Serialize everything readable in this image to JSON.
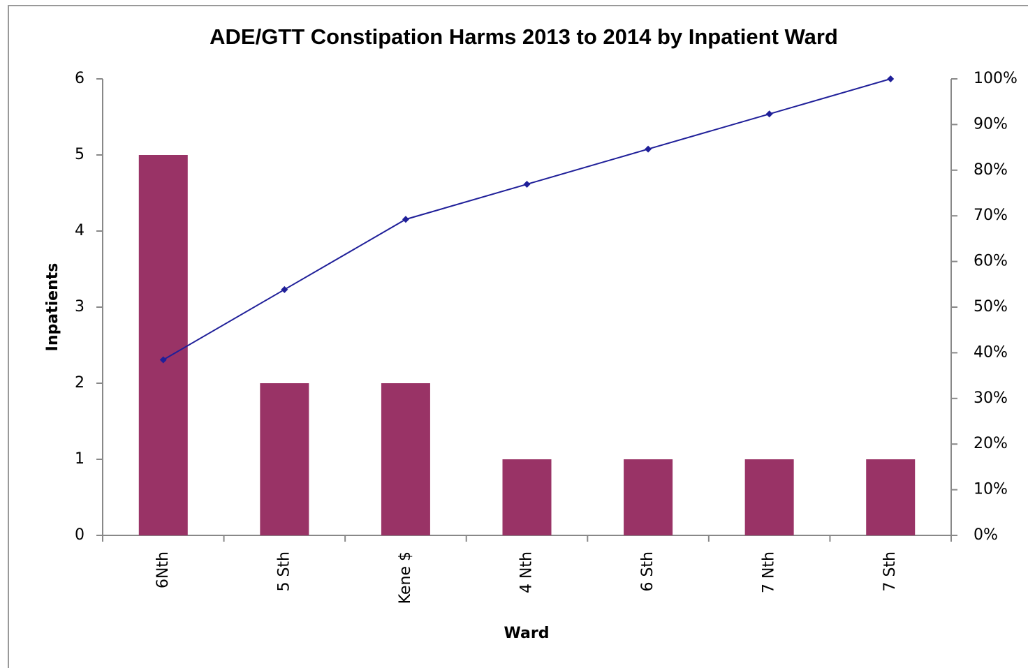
{
  "chart_data": {
    "type": "bar",
    "title": "ADE/GTT Constipation Harms 2013 to 2014 by Inpatient Ward",
    "x_label": "Ward",
    "y_label": "Inpatients",
    "categories": [
      "6Nth",
      "5 Sth",
      "Kene $",
      "4 Nth",
      "6 Sth",
      "7 Nth",
      "7 Sth"
    ],
    "series": [
      {
        "type": "bar",
        "color": "#993366",
        "axis": "y",
        "values": [
          5,
          2,
          2,
          1,
          1,
          1,
          1
        ]
      },
      {
        "type": "line",
        "color": "#1f1f99",
        "axis": "y2",
        "values": [
          38.46,
          53.85,
          69.23,
          76.92,
          84.62,
          92.31,
          100
        ]
      }
    ],
    "ylim": [
      0,
      6
    ],
    "yticks": [
      0,
      1,
      2,
      3,
      4,
      5,
      6
    ],
    "y2lim": [
      0,
      100
    ],
    "y2ticks": [
      {
        "value": 0,
        "label": "0%"
      },
      {
        "value": 10,
        "label": "10%"
      },
      {
        "value": 20,
        "label": "20%"
      },
      {
        "value": 30,
        "label": "30%"
      },
      {
        "value": 40,
        "label": "40%"
      },
      {
        "value": 50,
        "label": "50%"
      },
      {
        "value": 60,
        "label": "60%"
      },
      {
        "value": 70,
        "label": "70%"
      },
      {
        "value": 80,
        "label": "80%"
      },
      {
        "value": 90,
        "label": "90%"
      },
      {
        "value": 100,
        "label": "100%"
      }
    ],
    "grid": false
  }
}
